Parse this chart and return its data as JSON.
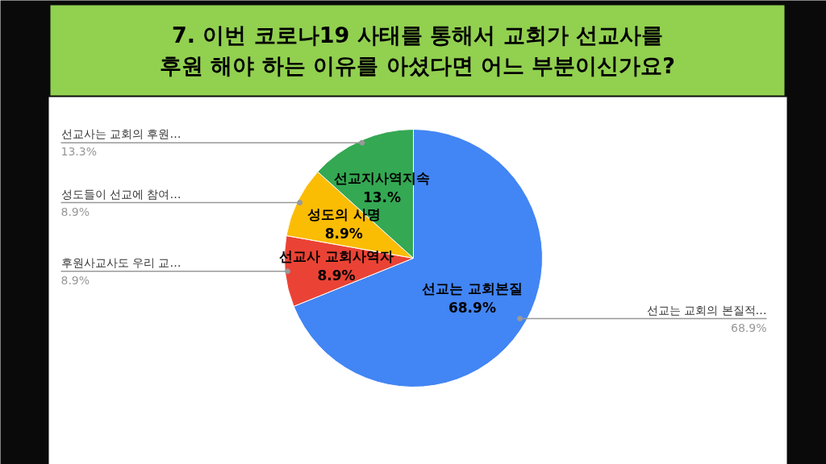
{
  "chart_data": {
    "type": "pie",
    "title": "7. 이번 코로나19 사태를 통해서 교회가 선교사를\n후원 해야 하는 이유를 아셨다면 어느 부분이신가요?",
    "categories": [
      "선교는 교회의 본질적…",
      "후원사교사도 우리 교…",
      "성도들이 선교에 참여…",
      "선교사는 교회의 후원…"
    ],
    "values": [
      68.9,
      8.9,
      8.9,
      13.3
    ],
    "value_labels": [
      "68.9%",
      "8.9%",
      "8.9%",
      "13.3%"
    ],
    "colors": [
      "#4285f4",
      "#ea4335",
      "#fbbc04",
      "#34a853"
    ],
    "annotations": [
      "선교는 교회본질\n68.9%",
      "선교사 교회사역자\n8.9%",
      "성도의 사명\n8.9%",
      "선교지사역지속\n13.%"
    ]
  }
}
